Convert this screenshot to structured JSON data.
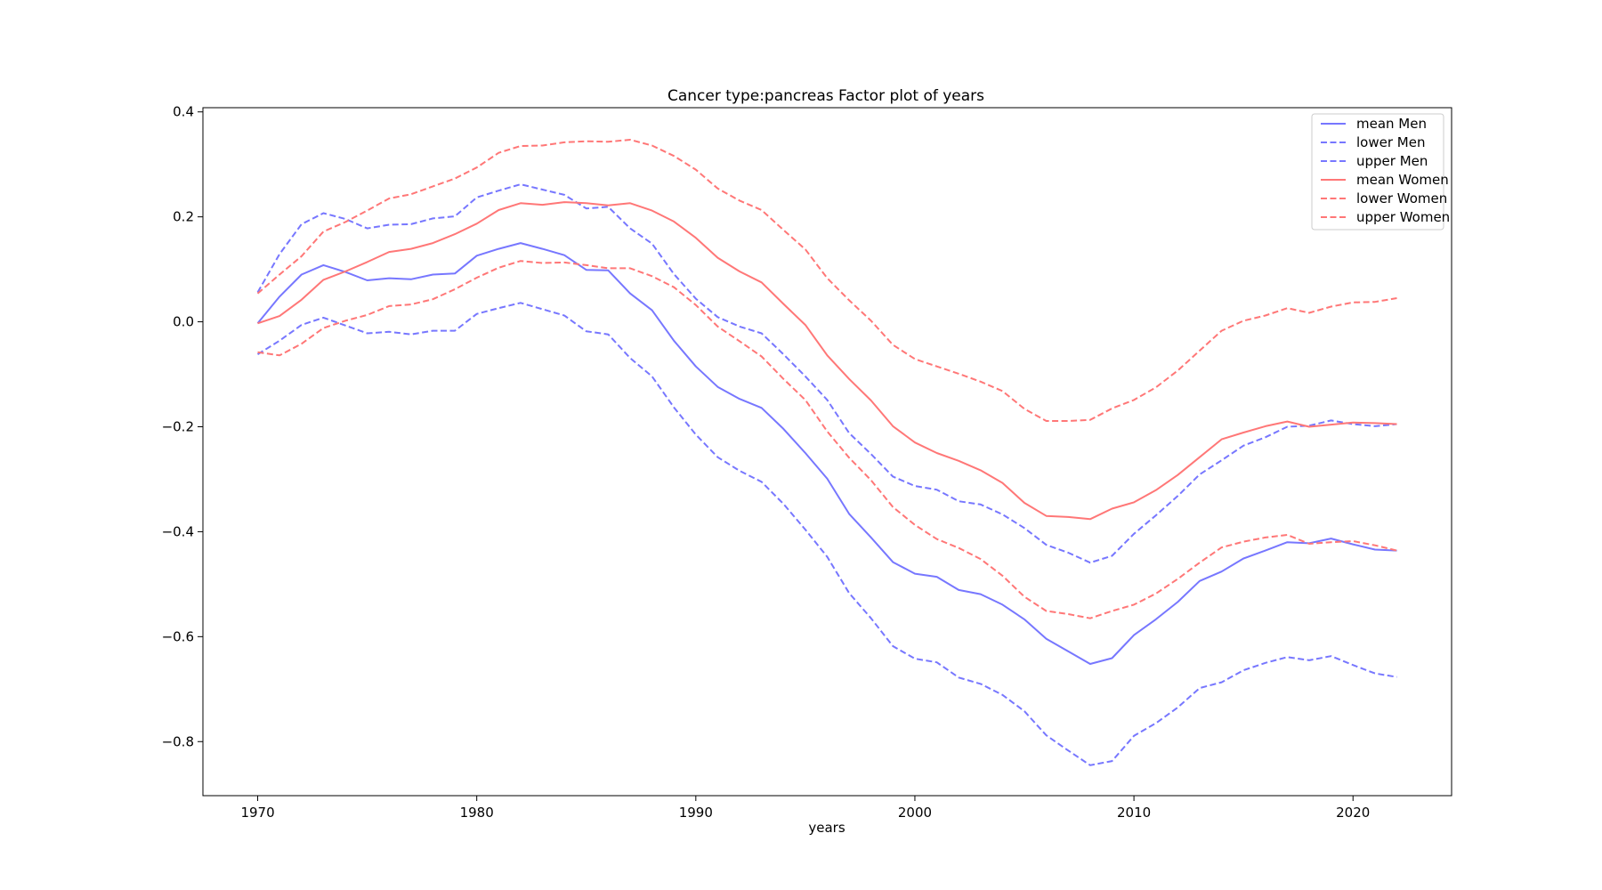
{
  "chart_data": {
    "type": "line",
    "title": "Cancer type:pancreas Factor plot of years",
    "xlabel": "years",
    "ylabel": "",
    "xlim": [
      1967.5,
      2024.5
    ],
    "ylim": [
      -0.903,
      0.408
    ],
    "xticks": [
      1970,
      1980,
      1990,
      2000,
      2010,
      2020
    ],
    "xtick_labels": [
      "1970",
      "1980",
      "1990",
      "2000",
      "2010",
      "2020"
    ],
    "yticks": [
      0.4,
      0.2,
      0.0,
      -0.2,
      -0.4,
      -0.6,
      -0.8
    ],
    "ytick_labels": [
      "0.4",
      "0.2",
      "0.0",
      "−0.2",
      "−0.4",
      "−0.6",
      "−0.8"
    ],
    "grid": false,
    "legend_position": "top-right",
    "x_start": 1970,
    "x_end": 2022,
    "series": [
      {
        "name": "mean Men",
        "color": "#7777ff",
        "dash": "solid",
        "values": [
          -0.003,
          0.048,
          0.09,
          0.108,
          0.095,
          0.079,
          0.083,
          0.081,
          0.09,
          0.092,
          0.126,
          0.139,
          0.15,
          0.139,
          0.127,
          0.099,
          0.098,
          0.054,
          0.022,
          -0.036,
          -0.085,
          -0.124,
          -0.147,
          -0.164,
          -0.204,
          -0.25,
          -0.299,
          -0.366,
          -0.411,
          -0.458,
          -0.48,
          -0.486,
          -0.511,
          -0.519,
          -0.539,
          -0.567,
          -0.604,
          -0.628,
          -0.652,
          -0.641,
          -0.597,
          -0.567,
          -0.534,
          -0.494,
          -0.476,
          -0.451,
          -0.436,
          -0.42,
          -0.422,
          -0.413,
          -0.424,
          -0.434,
          -0.436
        ]
      },
      {
        "name": "lower Men",
        "color": "#7777ff",
        "dash": "dashed",
        "values": [
          -0.062,
          -0.036,
          -0.006,
          0.008,
          -0.007,
          -0.022,
          -0.019,
          -0.024,
          -0.017,
          -0.017,
          0.015,
          0.026,
          0.036,
          0.024,
          0.012,
          -0.018,
          -0.024,
          -0.069,
          -0.104,
          -0.163,
          -0.215,
          -0.258,
          -0.284,
          -0.305,
          -0.347,
          -0.396,
          -0.448,
          -0.517,
          -0.565,
          -0.618,
          -0.642,
          -0.649,
          -0.678,
          -0.69,
          -0.711,
          -0.742,
          -0.788,
          -0.817,
          -0.845,
          -0.837,
          -0.789,
          -0.765,
          -0.735,
          -0.698,
          -0.687,
          -0.664,
          -0.65,
          -0.639,
          -0.645,
          -0.637,
          -0.654,
          -0.67,
          -0.677
        ]
      },
      {
        "name": "upper Men",
        "color": "#7777ff",
        "dash": "dashed",
        "values": [
          0.056,
          0.129,
          0.186,
          0.207,
          0.196,
          0.178,
          0.185,
          0.186,
          0.197,
          0.201,
          0.237,
          0.25,
          0.262,
          0.252,
          0.242,
          0.216,
          0.219,
          0.178,
          0.149,
          0.091,
          0.044,
          0.009,
          -0.009,
          -0.022,
          -0.062,
          -0.104,
          -0.149,
          -0.212,
          -0.252,
          -0.295,
          -0.313,
          -0.32,
          -0.342,
          -0.348,
          -0.367,
          -0.393,
          -0.425,
          -0.44,
          -0.459,
          -0.446,
          -0.404,
          -0.369,
          -0.332,
          -0.291,
          -0.264,
          -0.236,
          -0.22,
          -0.2,
          -0.198,
          -0.188,
          -0.195,
          -0.199,
          -0.195
        ]
      },
      {
        "name": "mean Women",
        "color": "#ff7777",
        "dash": "solid",
        "values": [
          -0.003,
          0.011,
          0.042,
          0.08,
          0.096,
          0.114,
          0.133,
          0.139,
          0.15,
          0.167,
          0.187,
          0.213,
          0.226,
          0.223,
          0.228,
          0.226,
          0.222,
          0.226,
          0.212,
          0.191,
          0.16,
          0.122,
          0.096,
          0.075,
          0.034,
          -0.006,
          -0.064,
          -0.109,
          -0.15,
          -0.199,
          -0.23,
          -0.25,
          -0.265,
          -0.283,
          -0.307,
          -0.345,
          -0.37,
          -0.372,
          -0.376,
          -0.356,
          -0.344,
          -0.321,
          -0.292,
          -0.258,
          -0.224,
          -0.211,
          -0.199,
          -0.19,
          -0.2,
          -0.196,
          -0.192,
          -0.193,
          -0.195
        ]
      },
      {
        "name": "lower Women",
        "color": "#ff7777",
        "dash": "dashed",
        "values": [
          -0.058,
          -0.064,
          -0.042,
          -0.012,
          0.002,
          0.013,
          0.03,
          0.033,
          0.043,
          0.062,
          0.084,
          0.103,
          0.116,
          0.112,
          0.113,
          0.108,
          0.102,
          0.102,
          0.087,
          0.066,
          0.032,
          -0.009,
          -0.037,
          -0.066,
          -0.109,
          -0.149,
          -0.209,
          -0.259,
          -0.302,
          -0.353,
          -0.387,
          -0.414,
          -0.431,
          -0.452,
          -0.484,
          -0.524,
          -0.551,
          -0.557,
          -0.565,
          -0.551,
          -0.539,
          -0.518,
          -0.49,
          -0.459,
          -0.43,
          -0.419,
          -0.411,
          -0.406,
          -0.423,
          -0.42,
          -0.418,
          -0.426,
          -0.436
        ]
      },
      {
        "name": "upper Women",
        "color": "#ff7777",
        "dash": "dashed",
        "values": [
          0.054,
          0.09,
          0.125,
          0.172,
          0.19,
          0.212,
          0.235,
          0.243,
          0.258,
          0.273,
          0.294,
          0.322,
          0.335,
          0.336,
          0.342,
          0.344,
          0.343,
          0.347,
          0.336,
          0.316,
          0.29,
          0.254,
          0.231,
          0.213,
          0.175,
          0.138,
          0.083,
          0.041,
          0.002,
          -0.044,
          -0.071,
          -0.085,
          -0.099,
          -0.114,
          -0.132,
          -0.166,
          -0.189,
          -0.189,
          -0.187,
          -0.165,
          -0.149,
          -0.125,
          -0.093,
          -0.055,
          -0.017,
          0.002,
          0.012,
          0.026,
          0.017,
          0.029,
          0.037,
          0.038,
          0.045
        ]
      }
    ]
  }
}
